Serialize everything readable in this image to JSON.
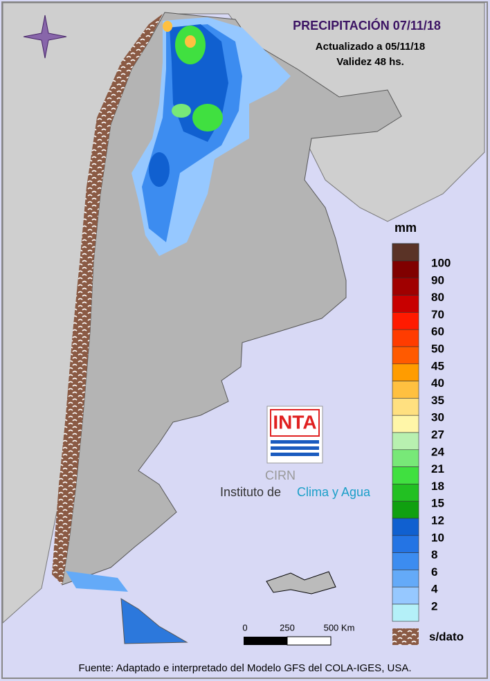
{
  "header": {
    "title": "PRECIPITACIÓN 07/11/18",
    "updated": "Actualizado a 05/11/18",
    "validity": "Validez 48 hs."
  },
  "legend": {
    "unit": "mm",
    "items": [
      {
        "label": "100",
        "color": "#800000"
      },
      {
        "label": "90",
        "color": "#a00000"
      },
      {
        "label": "80",
        "color": "#c80000"
      },
      {
        "label": "70",
        "color": "#ff1a00"
      },
      {
        "label": "60",
        "color": "#ff3c00"
      },
      {
        "label": "50",
        "color": "#ff5a00"
      },
      {
        "label": "45",
        "color": "#ff9c00"
      },
      {
        "label": "40",
        "color": "#ffc040"
      },
      {
        "label": "35",
        "color": "#ffe080"
      },
      {
        "label": "30",
        "color": "#fff6a8"
      },
      {
        "label": "27",
        "color": "#b8f0b0"
      },
      {
        "label": "24",
        "color": "#78e878"
      },
      {
        "label": "21",
        "color": "#40e040"
      },
      {
        "label": "18",
        "color": "#22c022"
      },
      {
        "label": "15",
        "color": "#10a010"
      },
      {
        "label": "12",
        "color": "#1060d0"
      },
      {
        "label": "10",
        "color": "#2474e4"
      },
      {
        "label": "8",
        "color": "#3c8cf0"
      },
      {
        "label": "6",
        "color": "#64aaf8"
      },
      {
        "label": "4",
        "color": "#96c8ff"
      },
      {
        "label": "2",
        "color": "#b4f0f8"
      }
    ],
    "no_data": "s/dato"
  },
  "scale_bar": {
    "labels": [
      "0",
      "250",
      "500 Km"
    ]
  },
  "logo": {
    "brand": "INTA",
    "unit": "CIRN",
    "name_prefix": "Instituto de",
    "name_highlight": "Clima y Agua"
  },
  "footer": "Fuente: Adaptado e interpretado del Modelo GFS del COLA-IGES, USA."
}
